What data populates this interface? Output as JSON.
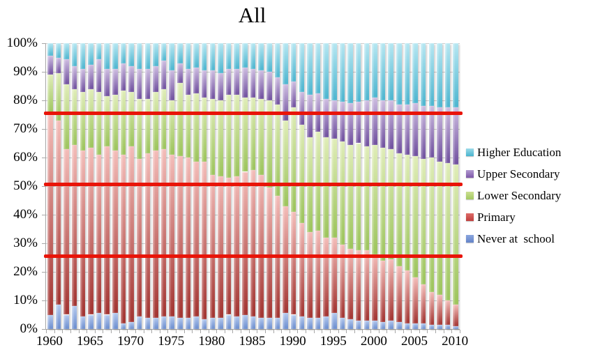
{
  "title": "All",
  "legend": {
    "position": "right",
    "items": [
      {
        "label": "Higher Education",
        "color_top": "#9ddbe9",
        "color_bottom": "#49b4cf"
      },
      {
        "label": "Upper Secondary",
        "color_top": "#b29ad0",
        "color_bottom": "#7d57a8"
      },
      {
        "label": "Lower Secondary",
        "color_top": "#ccdf92",
        "color_bottom": "#a3c961"
      },
      {
        "label": "Primary",
        "color_top": "#dd6b67",
        "color_bottom": "#c03f3e"
      },
      {
        "label": "Never at  school",
        "color_top": "#8ba6de",
        "color_bottom": "#6383c8"
      }
    ]
  },
  "y_axis": {
    "tick_labels": [
      "0%",
      "10%",
      "20%",
      "30%",
      "40%",
      "50%",
      "60%",
      "70%",
      "80%",
      "90%",
      "100%"
    ],
    "min": 0,
    "max": 100,
    "step": 10
  },
  "x_axis": {
    "tick_labels": [
      "1960",
      "1965",
      "1970",
      "1975",
      "1980",
      "1985",
      "1990",
      "1995",
      "2000",
      "2005",
      "2010"
    ]
  },
  "chart_data": {
    "type": "bar",
    "stacked": true,
    "percent_stacked": true,
    "title": "All",
    "xlabel": "",
    "ylabel": "",
    "ylim": [
      0,
      100
    ],
    "grid": true,
    "legend_position": "right",
    "x": [
      1960,
      1961,
      1962,
      1963,
      1964,
      1965,
      1966,
      1967,
      1968,
      1969,
      1970,
      1971,
      1972,
      1973,
      1974,
      1975,
      1976,
      1977,
      1978,
      1979,
      1980,
      1981,
      1982,
      1983,
      1984,
      1985,
      1986,
      1987,
      1988,
      1989,
      1990,
      1991,
      1992,
      1993,
      1994,
      1995,
      1996,
      1997,
      1998,
      1999,
      2000,
      2001,
      2002,
      2003,
      2004,
      2005,
      2006,
      2007,
      2008,
      2009,
      2010
    ],
    "series": [
      {
        "name": "Never at school",
        "color_top": "#b4c9ee",
        "color_bottom": "#6a8cce",
        "values": [
          5,
          8.5,
          5,
          8,
          4.5,
          5,
          5.5,
          5,
          5.5,
          2,
          2.5,
          4.5,
          4,
          4,
          4.5,
          4.5,
          4,
          4,
          4.5,
          3.5,
          4,
          4,
          5,
          4.5,
          5,
          4.5,
          4,
          4,
          4,
          5.5,
          5,
          4.5,
          4,
          4,
          4.5,
          5.5,
          4,
          3.5,
          3,
          3,
          3,
          2.5,
          3,
          2.5,
          2,
          2,
          2,
          1.5,
          1.5,
          1.5,
          1
        ]
      },
      {
        "name": "Primary",
        "color_top": "#f4bdb9",
        "color_bottom": "#a23431",
        "values": [
          70,
          64.5,
          58,
          56.5,
          58,
          58.5,
          55.5,
          59,
          57,
          59,
          61.5,
          55,
          57.5,
          58.5,
          58.5,
          56.5,
          56.5,
          56,
          54,
          55,
          50,
          49.5,
          48,
          49,
          50,
          51,
          50,
          45.5,
          42.5,
          37.5,
          36,
          32.5,
          30,
          30.5,
          27.5,
          26.5,
          25.5,
          24.5,
          24.5,
          24.5,
          23,
          21.5,
          21.5,
          19.5,
          18.5,
          16,
          13.5,
          11.5,
          10.5,
          8.5,
          7.5
        ]
      },
      {
        "name": "Lower Secondary",
        "color_top": "#e0edb8",
        "color_bottom": "#9cc45c",
        "values": [
          14,
          16.5,
          22.5,
          19.5,
          20.5,
          20.5,
          22,
          17.5,
          19.5,
          22.5,
          19,
          21,
          19,
          20.5,
          21,
          19,
          25.5,
          22,
          24,
          22.5,
          26.5,
          26.5,
          29,
          28.5,
          26,
          25.5,
          26.5,
          30.5,
          32,
          30,
          36.5,
          34.5,
          33,
          34.5,
          35,
          34.5,
          36,
          36.5,
          37.5,
          36.5,
          38.5,
          39.5,
          38.5,
          39.5,
          40.5,
          42.5,
          44,
          47,
          46.5,
          48,
          49
        ]
      },
      {
        "name": "Upper Secondary",
        "color_top": "#cebde1",
        "color_bottom": "#6f4f9e",
        "values": [
          6.5,
          5.5,
          9,
          8,
          8,
          8.5,
          11.5,
          9.5,
          9,
          9.5,
          9,
          10.5,
          10.5,
          9,
          10,
          10.5,
          7,
          9,
          9,
          9.5,
          10,
          9.5,
          9,
          9,
          10.5,
          10,
          10,
          10,
          9.5,
          12.5,
          9,
          11.5,
          15,
          13.5,
          13.5,
          13.5,
          14,
          14.5,
          14.5,
          16,
          16.5,
          16.5,
          17,
          17,
          17.5,
          18.5,
          18.5,
          18,
          19,
          19.5,
          20
        ]
      },
      {
        "name": "Higher Education",
        "color_top": "#b6e7f2",
        "color_bottom": "#4cb5cf",
        "values": [
          4.5,
          5,
          5.5,
          8,
          9,
          7.5,
          5.5,
          9,
          9,
          7,
          8,
          9,
          9,
          8,
          6,
          9.5,
          7,
          9,
          8.5,
          9.5,
          9.5,
          10.5,
          9,
          9,
          8.5,
          9,
          9.5,
          10,
          12,
          14.5,
          13.5,
          17,
          18,
          17.5,
          19.5,
          20,
          20.5,
          21,
          20.5,
          20,
          19,
          20,
          20,
          21.5,
          21.5,
          21,
          22,
          22,
          22.5,
          22.5,
          22.5
        ]
      }
    ],
    "reference_lines": {
      "color": "#e91408",
      "values": [
        25.5,
        50.5,
        75.5
      ]
    }
  }
}
